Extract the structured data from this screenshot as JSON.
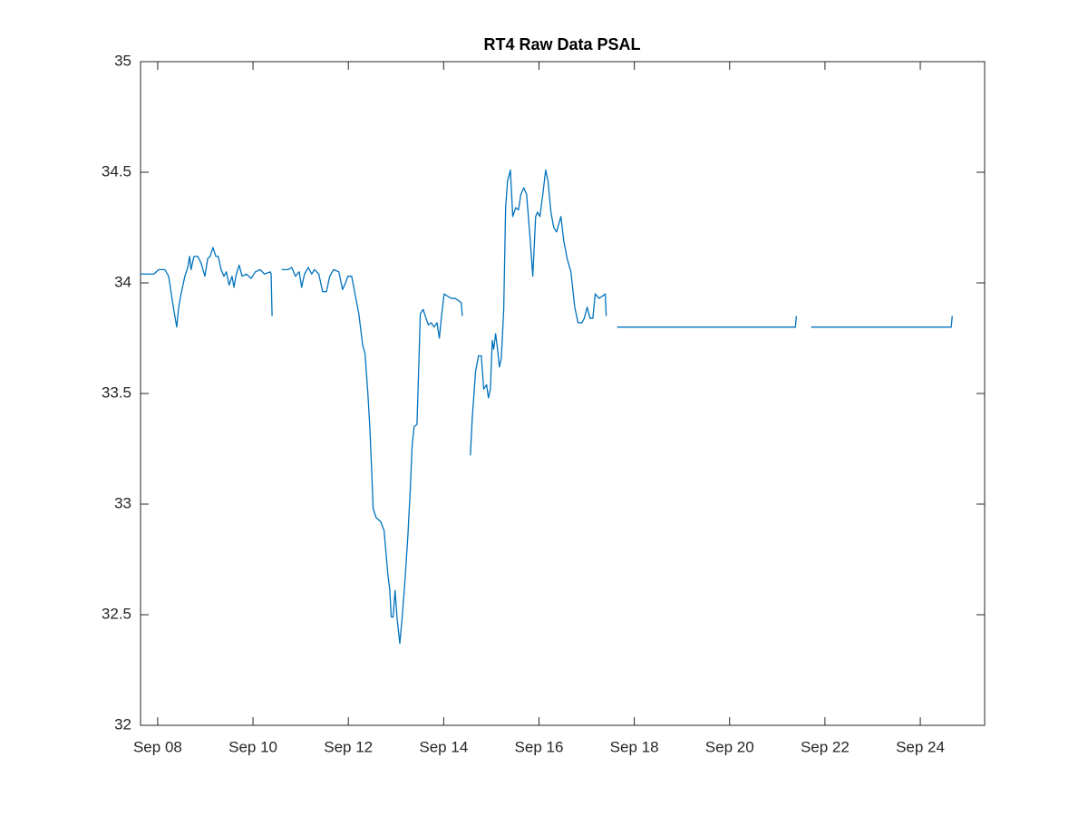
{
  "chart_data": {
    "type": "line",
    "title": "RT4 Raw Data PSAL",
    "xlim": [
      7.64,
      25.35
    ],
    "ylim": [
      32,
      35
    ],
    "yticks": [
      32,
      32.5,
      33,
      33.5,
      34,
      34.5,
      35
    ],
    "xticks": [
      {
        "value": 8,
        "label": "Sep 08"
      },
      {
        "value": 10,
        "label": "Sep 10"
      },
      {
        "value": 12,
        "label": "Sep 12"
      },
      {
        "value": 14,
        "label": "Sep 14"
      },
      {
        "value": 16,
        "label": "Sep 16"
      },
      {
        "value": 18,
        "label": "Sep 18"
      },
      {
        "value": 20,
        "label": "Sep 20"
      },
      {
        "value": 22,
        "label": "Sep 22"
      },
      {
        "value": 24,
        "label": "Sep 24"
      }
    ],
    "grid": false,
    "series": [
      {
        "color": "#0072bd",
        "x": [
          7.64,
          7.92,
          8.02,
          8.15,
          8.23,
          8.3,
          8.36,
          8.4,
          8.44,
          8.49,
          8.57,
          8.63,
          8.67,
          8.7,
          8.76,
          8.84,
          8.91,
          8.99,
          9.05,
          9.1,
          9.16,
          9.22,
          9.27,
          9.33,
          9.39,
          9.44,
          9.5,
          9.56,
          9.6,
          9.65,
          9.71,
          9.77,
          9.86,
          9.96,
          10.05,
          10.15,
          10.24,
          10.36,
          10.38,
          10.4,
          null,
          10.6,
          10.74,
          10.81,
          10.89,
          10.97,
          11.02,
          11.08,
          11.16,
          11.23,
          11.29,
          11.38,
          11.46,
          11.54,
          11.61,
          11.69,
          11.8,
          11.88,
          11.94,
          11.99,
          12.07,
          12.14,
          12.22,
          12.3,
          12.35,
          12.41,
          12.45,
          12.49,
          12.52,
          12.58,
          12.68,
          12.75,
          12.79,
          12.83,
          12.87,
          12.9,
          12.94,
          12.98,
          13.02,
          13.08,
          13.13,
          13.19,
          13.25,
          13.3,
          13.34,
          13.38,
          13.44,
          13.48,
          13.51,
          13.57,
          13.63,
          13.68,
          13.74,
          13.8,
          13.86,
          13.91,
          13.95,
          14.01,
          14.08,
          14.16,
          14.24,
          14.31,
          14.37,
          14.39,
          null,
          14.56,
          14.6,
          14.63,
          14.67,
          14.73,
          14.79,
          14.84,
          14.9,
          14.94,
          14.98,
          15.02,
          15.05,
          15.09,
          15.13,
          15.17,
          15.21,
          15.26,
          15.3,
          15.34,
          15.4,
          15.45,
          15.51,
          15.57,
          15.62,
          15.68,
          15.74,
          15.81,
          15.87,
          15.93,
          15.97,
          16.02,
          16.08,
          16.14,
          16.19,
          16.25,
          16.31,
          16.37,
          16.42,
          16.46,
          16.52,
          16.59,
          16.67,
          16.75,
          16.82,
          16.9,
          16.95,
          17.01,
          17.07,
          17.13,
          17.18,
          17.26,
          17.33,
          17.39,
          17.41,
          null,
          17.64,
          21.38,
          21.4,
          null,
          21.71,
          24.65,
          24.67
        ],
        "values": [
          34.04,
          34.04,
          34.06,
          34.06,
          34.03,
          33.93,
          33.85,
          33.8,
          33.89,
          33.95,
          34.03,
          34.07,
          34.12,
          34.06,
          34.12,
          34.12,
          34.09,
          34.03,
          34.11,
          34.12,
          34.16,
          34.12,
          34.12,
          34.06,
          34.03,
          34.05,
          33.99,
          34.03,
          33.98,
          34.04,
          34.08,
          34.03,
          34.04,
          34.02,
          34.05,
          34.06,
          34.04,
          34.05,
          34.04,
          33.85,
          null,
          34.06,
          34.06,
          34.07,
          34.03,
          34.05,
          33.98,
          34.04,
          34.07,
          34.04,
          34.06,
          34.04,
          33.96,
          33.96,
          34.03,
          34.06,
          34.05,
          33.97,
          34.0,
          34.03,
          34.03,
          33.95,
          33.86,
          33.72,
          33.68,
          33.5,
          33.35,
          33.15,
          32.98,
          32.94,
          32.92,
          32.88,
          32.78,
          32.68,
          32.61,
          32.49,
          32.49,
          32.61,
          32.49,
          32.37,
          32.49,
          32.66,
          32.86,
          33.07,
          33.27,
          33.35,
          33.36,
          33.64,
          33.86,
          33.88,
          33.84,
          33.81,
          33.82,
          33.8,
          33.82,
          33.75,
          33.84,
          33.95,
          33.94,
          33.93,
          33.93,
          33.92,
          33.91,
          33.85,
          null,
          33.22,
          33.39,
          33.48,
          33.6,
          33.67,
          33.67,
          33.52,
          33.54,
          33.48,
          33.52,
          33.74,
          33.7,
          33.77,
          33.7,
          33.62,
          33.66,
          33.88,
          34.34,
          34.46,
          34.51,
          34.3,
          34.34,
          34.33,
          34.4,
          34.43,
          34.4,
          34.21,
          34.03,
          34.3,
          34.32,
          34.3,
          34.4,
          34.51,
          34.46,
          34.32,
          34.25,
          34.23,
          34.27,
          34.3,
          34.19,
          34.11,
          34.05,
          33.89,
          33.82,
          33.82,
          33.84,
          33.89,
          33.84,
          33.84,
          33.95,
          33.93,
          33.94,
          33.95,
          33.85,
          null,
          33.8,
          33.8,
          33.85,
          null,
          33.8,
          33.8,
          33.85
        ]
      }
    ]
  }
}
